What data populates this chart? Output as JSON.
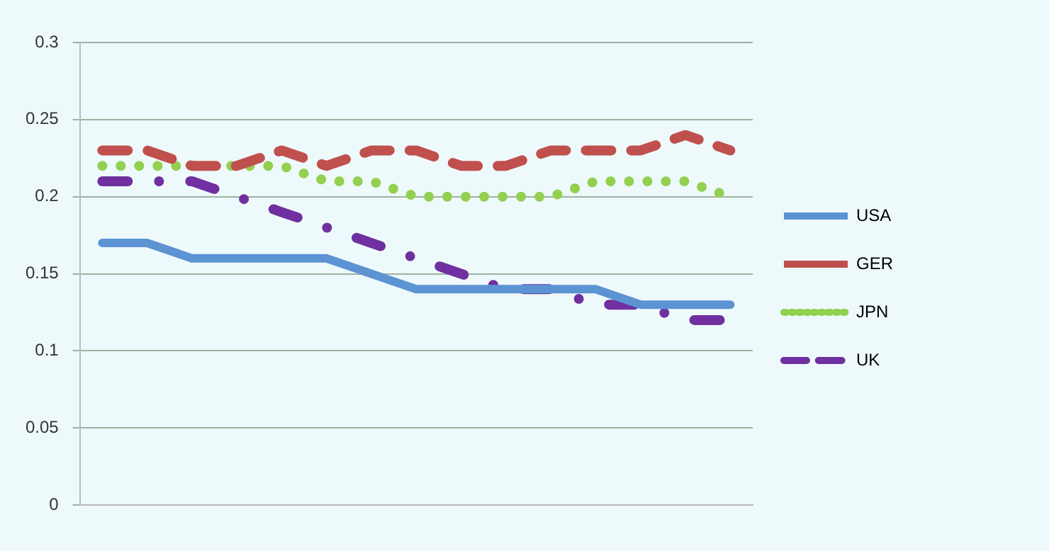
{
  "chart_data": {
    "type": "line",
    "categories": [
      null,
      null,
      null,
      null,
      null,
      null,
      null,
      null,
      null,
      null,
      null,
      null,
      null,
      null,
      null
    ],
    "series": [
      {
        "name": "USA",
        "color": "#5b93d3",
        "line_style": "solid",
        "values": [
          0.17,
          0.17,
          0.16,
          0.16,
          0.16,
          0.16,
          0.15,
          0.14,
          0.14,
          0.14,
          0.14,
          0.14,
          0.13,
          0.13,
          0.13
        ]
      },
      {
        "name": "GER",
        "color": "#c0504d",
        "line_style": "dashed",
        "values": [
          0.23,
          0.23,
          0.22,
          0.22,
          0.23,
          0.22,
          0.23,
          0.23,
          0.22,
          0.22,
          0.23,
          0.23,
          0.23,
          0.24,
          0.23
        ]
      },
      {
        "name": "JPN",
        "color": "#92d050",
        "line_style": "dotted",
        "values": [
          0.22,
          0.22,
          0.22,
          0.22,
          0.22,
          0.21,
          0.21,
          0.2,
          0.2,
          0.2,
          0.2,
          0.21,
          0.21,
          0.21,
          0.2
        ]
      },
      {
        "name": "UK",
        "color": "#7030a0",
        "line_style": "dashdot",
        "values": [
          0.21,
          0.21,
          0.21,
          0.2,
          0.19,
          0.18,
          0.17,
          0.16,
          0.15,
          0.14,
          0.14,
          0.13,
          0.13,
          0.12,
          0.12
        ]
      }
    ],
    "ylim": [
      0,
      0.3
    ],
    "yticks": [
      0,
      0.05,
      0.1,
      0.15,
      0.2,
      0.25,
      0.3
    ],
    "grid": "y",
    "legend": "right",
    "marker": "none"
  }
}
